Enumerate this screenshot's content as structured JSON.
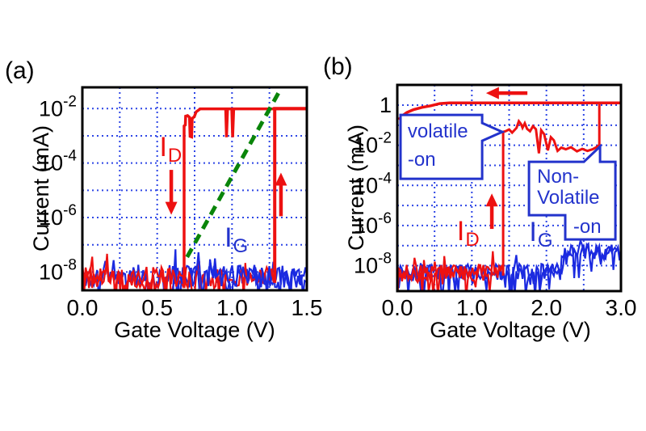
{
  "figure": {
    "background": "#ffffff",
    "colors": {
      "axis": "#000000",
      "grid_blue": "#2e46e6",
      "red": "#ed1111",
      "curve_blue": "#1b2ae0",
      "text_blue": "#2333cc",
      "green": "#0a850a"
    }
  },
  "chart_data": [
    {
      "type": "line",
      "panel_label": "(a)",
      "xlabel": "Gate Voltage (V)",
      "ylabel": "Current (mA)",
      "xlim": [
        0,
        1.5
      ],
      "x_tick_values": [
        0.0,
        0.5,
        1.0,
        1.5
      ],
      "x_tick_labels": [
        "0.0",
        "0.5",
        "1.0",
        "1.5"
      ],
      "x_grid_values": [
        0.25,
        0.5,
        0.75,
        1.0,
        1.25
      ],
      "ylog_range": [
        -1.22,
        -8.67
      ],
      "y_grid_exps": [
        -2,
        -3,
        -4,
        -5,
        -6,
        -7,
        -8
      ],
      "y_ticks": [
        {
          "e": -2,
          "base": "10",
          "sup": "-2"
        },
        {
          "e": -4,
          "base": "10",
          "sup": "-4"
        },
        {
          "e": -6,
          "base": "10",
          "sup": "-6"
        },
        {
          "e": -8,
          "base": "10",
          "sup": "-8"
        }
      ],
      "series": [
        {
          "name": "gate-current-noise-1",
          "kind": "noise",
          "color": "#1b2ae0",
          "width": 2.2,
          "seeds": [
            11
          ],
          "step": 0.011,
          "centers": [
            [
              0,
              -8.15
            ],
            [
              1.5,
              -8.15
            ]
          ],
          "amp": 0.42,
          "deep_p": 0.1,
          "deep": 0.55,
          "up_p": 0.05,
          "up": 0.5
        },
        {
          "name": "drain-current-noise-1",
          "kind": "noise",
          "color": "#ed1111",
          "width": 2.2,
          "seeds": [
            5
          ],
          "step": 0.011,
          "centers": [
            [
              0,
              -8.2
            ],
            [
              1.285,
              -8.2
            ]
          ],
          "amp": 0.4,
          "deep_p": 0.12,
          "deep": 0.6,
          "up_p": 0.04,
          "up": 0.45
        },
        {
          "name": "gate-current-noise-2",
          "kind": "noise",
          "color": "#1b2ae0",
          "width": 2.2,
          "seeds": [
            23
          ],
          "step": 0.011,
          "centers": [
            [
              0.6,
              -8.15
            ],
            [
              1.5,
              -8.15
            ]
          ],
          "amp": 0.42,
          "deep_p": 0.1,
          "deep": 0.6,
          "up_p": 0.05,
          "up": 0.5
        },
        {
          "name": "drain-current-noise-3",
          "kind": "noise",
          "color": "#ed1111",
          "width": 2.2,
          "seeds": [
            37
          ],
          "step": 0.011,
          "centers": [
            [
              0,
              -8.2
            ],
            [
              0.7,
              -8.2
            ]
          ],
          "amp": 0.4,
          "deep_p": 0.12,
          "deep": 0.6,
          "up_p": 0.04,
          "up": 0.45
        },
        {
          "name": "drain-current-forward-jump",
          "kind": "line",
          "color": "#ed1111",
          "width": 4,
          "points": [
            [
              1.285,
              -8.4
            ],
            [
              1.285,
              -2.0
            ],
            [
              1.5,
              -2.0
            ]
          ]
        },
        {
          "name": "drain-current-reverse-sweep",
          "kind": "line",
          "color": "#ed1111",
          "width": 3.5,
          "points": [
            [
              0.68,
              -8.4
            ],
            [
              0.68,
              -2.64
            ],
            [
              0.688,
              -2.6
            ],
            [
              0.69,
              -2.28
            ],
            [
              0.703,
              -2.26
            ],
            [
              0.716,
              -2.32
            ],
            [
              0.72,
              -3.02
            ],
            [
              0.73,
              -3.04
            ],
            [
              0.734,
              -2.36
            ],
            [
              0.748,
              -2.3
            ],
            [
              0.76,
              -2.12
            ],
            [
              0.788,
              -2.01
            ],
            [
              0.958,
              -2.01
            ],
            [
              0.963,
              -3.05
            ],
            [
              0.97,
              -2.01
            ],
            [
              0.998,
              -2.01
            ],
            [
              1.004,
              -3.05
            ],
            [
              1.011,
              -2.01
            ],
            [
              1.5,
              -2.01
            ]
          ]
        },
        {
          "name": "subthreshold-guide-line",
          "kind": "line",
          "color": "#0a850a",
          "width": 5,
          "dash": "12 8",
          "points": [
            [
              0.7,
              -7.45
            ],
            [
              1.31,
              -1.43
            ]
          ]
        }
      ],
      "annotations": [
        {
          "kind": "label",
          "text": "I",
          "sub": "D",
          "color": "#ed1111",
          "v": 0.515,
          "exp": -3.74,
          "size": 34,
          "sub_size": 24
        },
        {
          "kind": "arrow",
          "name": "sweep-down-arrow",
          "color": "#ed1111",
          "x1v": 0.594,
          "y1e": -4.25,
          "x2v": 0.594,
          "y2e": -5.9
        },
        {
          "kind": "arrow",
          "name": "sweep-up-arrow",
          "color": "#ed1111",
          "x1v": 1.327,
          "y1e": -5.95,
          "x2v": 1.327,
          "y2e": -4.35
        },
        {
          "kind": "label",
          "text": "I",
          "sub": "G",
          "color": "#2333cc",
          "v": 0.95,
          "exp": -7.06,
          "size": 34,
          "sub_size": 24
        }
      ]
    },
    {
      "type": "line",
      "panel_label": "(b)",
      "xlabel": "Gate Voltage (V)",
      "ylabel": "Current (mA)",
      "xlim": [
        0,
        3.0
      ],
      "x_tick_values": [
        0.0,
        1.0,
        2.0,
        3.0
      ],
      "x_tick_labels": [
        "0.0",
        "1.0",
        "2.0",
        "3.0"
      ],
      "x_grid_values": [
        0.5,
        1.0,
        1.5,
        2.0,
        2.5
      ],
      "ylog_range": [
        1.01,
        -9.27
      ],
      "y_grid_exps": [
        0,
        -1,
        -2,
        -3,
        -4,
        -5,
        -6,
        -7,
        -8
      ],
      "y_ticks": [
        {
          "e": 0,
          "base": "1",
          "sup": ""
        },
        {
          "e": -2,
          "base": "10",
          "sup": "-2"
        },
        {
          "e": -4,
          "base": "10",
          "sup": "-4"
        },
        {
          "e": -6,
          "base": "10",
          "sup": "-6"
        },
        {
          "e": -8,
          "base": "10",
          "sup": "-8"
        }
      ],
      "series": [
        {
          "name": "gate-current-noise-1",
          "kind": "noise",
          "color": "#1b2ae0",
          "width": 2.2,
          "seeds": [
            13
          ],
          "step": 0.021,
          "centers": [
            [
              0,
              -8.35
            ],
            [
              2.1,
              -8.3
            ],
            [
              2.3,
              -7.55
            ],
            [
              2.5,
              -7.3
            ],
            [
              3.0,
              -7.35
            ]
          ],
          "amp": 0.4,
          "deep_p": 0.12,
          "deep": 0.8,
          "up_p": 0.05,
          "up": 0.4
        },
        {
          "name": "gate-current-noise-2",
          "kind": "noise",
          "color": "#1b2ae0",
          "width": 2.2,
          "seeds": [
            41
          ],
          "step": 0.021,
          "centers": [
            [
              0,
              -8.35
            ],
            [
              2.1,
              -8.3
            ],
            [
              2.3,
              -7.55
            ],
            [
              2.5,
              -7.3
            ],
            [
              3.0,
              -7.35
            ]
          ],
          "amp": 0.4,
          "deep_p": 0.12,
          "deep": 0.8,
          "up_p": 0.05,
          "up": 0.4
        },
        {
          "name": "drain-current-noise-1",
          "kind": "noise",
          "color": "#ed1111",
          "width": 2.2,
          "seeds": [
            7
          ],
          "step": 0.021,
          "centers": [
            [
              0,
              -8.35
            ],
            [
              1.42,
              -8.35
            ]
          ],
          "amp": 0.4,
          "deep_p": 0.12,
          "deep": 0.7,
          "up_p": 0.04,
          "up": 0.5
        },
        {
          "name": "drain-current-noise-2",
          "kind": "noise",
          "color": "#ed1111",
          "width": 2.2,
          "seeds": [
            19
          ],
          "step": 0.021,
          "centers": [
            [
              0,
              -8.35
            ],
            [
              1.42,
              -8.35
            ]
          ],
          "amp": 0.4,
          "deep_p": 0.12,
          "deep": 0.7,
          "up_p": 0.04,
          "up": 0.5
        },
        {
          "name": "drain-current-reverse-top",
          "kind": "line",
          "color": "#ed1111",
          "width": 3.5,
          "points": [
            [
              0.02,
              -0.72
            ],
            [
              0.07,
              -0.52
            ],
            [
              0.13,
              -0.36
            ],
            [
              0.22,
              -0.22
            ],
            [
              0.33,
              -0.11
            ],
            [
              0.45,
              -0.03
            ],
            [
              0.57,
              0.08
            ],
            [
              0.7,
              0.11
            ],
            [
              3.0,
              0.11
            ]
          ]
        },
        {
          "name": "drain-current-forward-sweep",
          "kind": "line",
          "color": "#ed1111",
          "width": 3,
          "points": [
            [
              1.42,
              -8.5
            ],
            [
              1.42,
              -1.33
            ],
            [
              1.45,
              -1.3
            ],
            [
              1.5,
              -1.21
            ],
            [
              1.54,
              -1.37
            ],
            [
              1.6,
              -1.13
            ],
            [
              1.63,
              -0.8
            ],
            [
              1.66,
              -0.95
            ],
            [
              1.68,
              -1.13
            ],
            [
              1.71,
              -0.9
            ],
            [
              1.74,
              -1.18
            ],
            [
              1.78,
              -1.3
            ],
            [
              1.82,
              -1.05
            ],
            [
              1.86,
              -1.2
            ],
            [
              1.9,
              -2.4
            ],
            [
              1.93,
              -1.25
            ],
            [
              1.97,
              -1.45
            ],
            [
              2.02,
              -2.25
            ],
            [
              2.06,
              -1.6
            ],
            [
              2.1,
              -1.75
            ],
            [
              2.15,
              -2.28
            ],
            [
              2.2,
              -2.12
            ],
            [
              2.26,
              -2.2
            ],
            [
              2.33,
              -2.1
            ],
            [
              2.41,
              -2.3
            ],
            [
              2.48,
              -2.18
            ],
            [
              2.55,
              -2.28
            ],
            [
              2.62,
              -2.2
            ],
            [
              2.67,
              -2.1
            ],
            [
              2.71,
              -1.98
            ],
            [
              2.71,
              0.11
            ]
          ]
        }
      ],
      "annotations": [
        {
          "kind": "arrow",
          "name": "reverse-sweep-arrow",
          "color": "#ed1111",
          "x1v": 1.745,
          "y1e": 0.6,
          "x2v": 1.19,
          "y2e": 0.6
        },
        {
          "kind": "callout",
          "name": "volatile-on-callout",
          "color": "#2333cc",
          "points": [
            [
              0.043,
              -0.484
            ],
            [
              1.138,
              -0.484
            ],
            [
              1.138,
              -0.887
            ],
            [
              1.408,
              -1.331
            ],
            [
              1.138,
              -1.774
            ],
            [
              1.138,
              -3.669
            ],
            [
              0.043,
              -3.669
            ]
          ],
          "lines": [
            {
              "t": "volatile",
              "v": 0.14,
              "e": -1.61
            },
            {
              "t": "-on",
              "v": 0.14,
              "e": -3.02
            }
          ],
          "size": 24
        },
        {
          "kind": "callout",
          "name": "non-volatile-on-callout",
          "color": "#2333cc",
          "points": [
            [
              1.766,
              -2.823
            ],
            [
              2.503,
              -2.823
            ],
            [
              2.72,
              -2.056
            ],
            [
              2.72,
              -2.823
            ],
            [
              2.925,
              -2.823
            ],
            [
              2.925,
              -6.694
            ],
            [
              2.253,
              -6.694
            ],
            [
              2.253,
              -5.484
            ],
            [
              1.766,
              -5.484
            ]
          ],
          "lines": [
            {
              "t": "Non-",
              "v": 1.875,
              "e": -3.87
            },
            {
              "t": "Volatile",
              "v": 1.875,
              "e": -4.92
            },
            {
              "t": "-on",
              "v": 2.36,
              "e": -6.37
            }
          ],
          "size": 24
        },
        {
          "kind": "label",
          "text": "I",
          "sub": "D",
          "color": "#ed1111",
          "v": 0.8,
          "exp": -6.73,
          "size": 34,
          "sub_size": 24
        },
        {
          "kind": "arrow",
          "name": "set-up-arrow",
          "color": "#ed1111",
          "x1v": 1.268,
          "y1e": -6.17,
          "x2v": 1.268,
          "y2e": -4.4
        },
        {
          "kind": "label",
          "text": "I",
          "sub": "G",
          "color": "#2333cc",
          "v": 1.77,
          "exp": -6.77,
          "size": 34,
          "sub_size": 24
        }
      ]
    }
  ]
}
